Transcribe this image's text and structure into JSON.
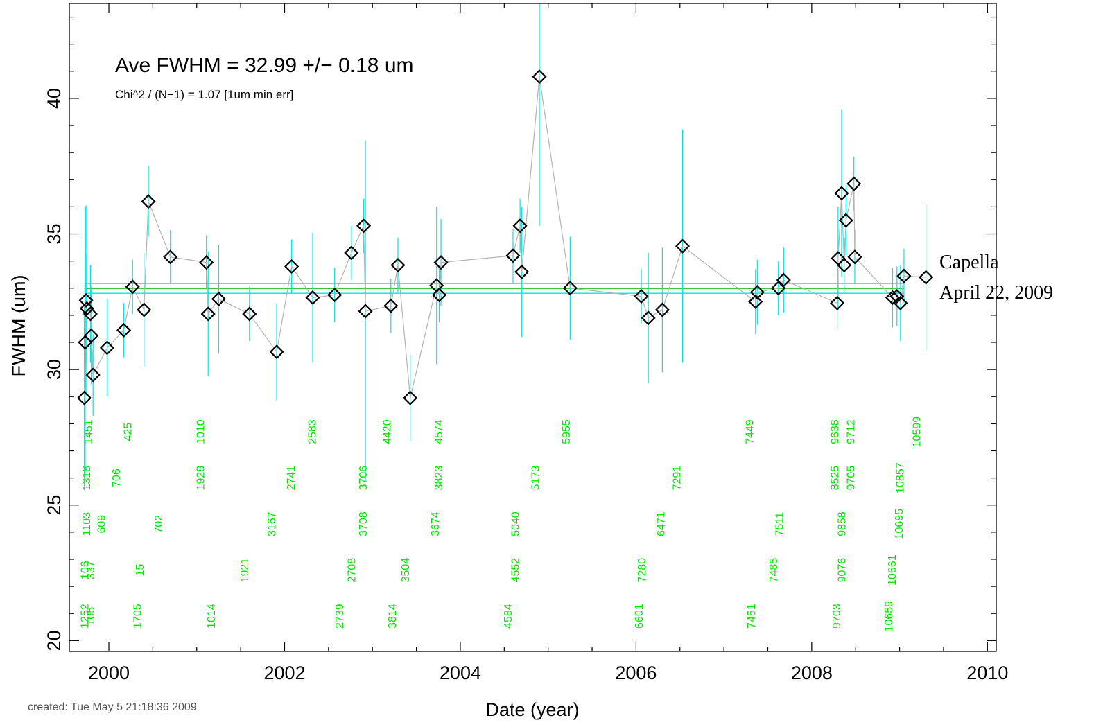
{
  "chart_data": {
    "type": "scatter",
    "title": "",
    "xlabel": "Date (year)",
    "ylabel": "FWHM (um)",
    "xlim": [
      1999.55,
      2010.1
    ],
    "ylim": [
      19.6,
      43.5
    ],
    "x_ticks": [
      2000,
      2002,
      2004,
      2006,
      2008,
      2010
    ],
    "y_ticks": [
      20,
      25,
      30,
      35,
      40
    ],
    "grid": false,
    "annotations": {
      "avg_text": "Ave FWHM = 32.99 +/− 0.18 um",
      "chi_text": "Chi^2 / (N−1) = 1.07  [1um min err]",
      "target_name": "Capella",
      "target_date": "April 22, 2009",
      "created": "created: Tue May  5 21:18:36 2009"
    },
    "mean_line": {
      "value": 32.99,
      "color": "#22bb22"
    },
    "error_band": {
      "low": 32.81,
      "high": 33.17,
      "color": "#00e5e5"
    },
    "colors": {
      "errorbar": "#00e5e5",
      "connector": "#b3b3b3",
      "marker": "#000000",
      "obsid": "#00e600"
    },
    "points": [
      {
        "x": 1999.72,
        "y": 28.95,
        "err": 3.4
      },
      {
        "x": 1999.73,
        "y": 31.0,
        "err": 5.0
      },
      {
        "x": 1999.74,
        "y": 32.55,
        "err": 3.5
      },
      {
        "x": 1999.75,
        "y": 32.25,
        "err": 2.0
      },
      {
        "x": 1999.79,
        "y": 32.05,
        "err": 1.8
      },
      {
        "x": 1999.8,
        "y": 31.25,
        "err": 1.8
      },
      {
        "x": 1999.82,
        "y": 29.8,
        "err": 1.5
      },
      {
        "x": 1999.98,
        "y": 30.8,
        "err": 1.8
      },
      {
        "x": 2000.17,
        "y": 31.45,
        "err": 1.0
      },
      {
        "x": 2000.27,
        "y": 33.05,
        "err": 1.0
      },
      {
        "x": 2000.4,
        "y": 32.2,
        "err": 2.1
      },
      {
        "x": 2000.45,
        "y": 36.2,
        "err": 1.3
      },
      {
        "x": 2000.7,
        "y": 34.15,
        "err": 1.0
      },
      {
        "x": 2001.11,
        "y": 33.95,
        "err": 1.0
      },
      {
        "x": 2001.13,
        "y": 32.05,
        "err": 2.3
      },
      {
        "x": 2001.25,
        "y": 32.6,
        "err": 2.0
      },
      {
        "x": 2001.6,
        "y": 32.05,
        "err": 1.0
      },
      {
        "x": 2001.91,
        "y": 30.65,
        "err": 1.8
      },
      {
        "x": 2002.08,
        "y": 33.8,
        "err": 1.0
      },
      {
        "x": 2002.32,
        "y": 32.65,
        "err": 2.4
      },
      {
        "x": 2002.57,
        "y": 32.75,
        "err": 1.0
      },
      {
        "x": 2002.76,
        "y": 34.3,
        "err": 1.0
      },
      {
        "x": 2002.9,
        "y": 35.3,
        "err": 1.0
      },
      {
        "x": 2002.92,
        "y": 32.15,
        "err": 6.3
      },
      {
        "x": 2003.21,
        "y": 32.35,
        "err": 1.0
      },
      {
        "x": 2003.29,
        "y": 33.85,
        "err": 1.0
      },
      {
        "x": 2003.43,
        "y": 28.95,
        "err": 1.6
      },
      {
        "x": 2003.73,
        "y": 33.1,
        "err": 2.9
      },
      {
        "x": 2003.76,
        "y": 32.75,
        "err": 1.0
      },
      {
        "x": 2003.78,
        "y": 33.95,
        "err": 1.6
      },
      {
        "x": 2004.6,
        "y": 34.2,
        "err": 1.0
      },
      {
        "x": 2004.68,
        "y": 35.3,
        "err": 1.0
      },
      {
        "x": 2004.7,
        "y": 33.6,
        "err": 2.4
      },
      {
        "x": 2004.9,
        "y": 40.8,
        "err": 5.5
      },
      {
        "x": 2005.25,
        "y": 33.0,
        "err": 1.9
      },
      {
        "x": 2006.06,
        "y": 32.7,
        "err": 1.0
      },
      {
        "x": 2006.14,
        "y": 31.9,
        "err": 2.4
      },
      {
        "x": 2006.3,
        "y": 32.2,
        "err": 2.3
      },
      {
        "x": 2006.53,
        "y": 34.55,
        "err": 4.3
      },
      {
        "x": 2007.36,
        "y": 32.5,
        "err": 1.2
      },
      {
        "x": 2007.38,
        "y": 32.85,
        "err": 1.2
      },
      {
        "x": 2007.62,
        "y": 33.0,
        "err": 1.0
      },
      {
        "x": 2007.68,
        "y": 33.3,
        "err": 1.2
      },
      {
        "x": 2008.29,
        "y": 32.45,
        "err": 1.0
      },
      {
        "x": 2008.3,
        "y": 34.1,
        "err": 1.9
      },
      {
        "x": 2008.34,
        "y": 36.5,
        "err": 3.1
      },
      {
        "x": 2008.37,
        "y": 33.85,
        "err": 1.0
      },
      {
        "x": 2008.39,
        "y": 35.5,
        "err": 1.3
      },
      {
        "x": 2008.48,
        "y": 36.85,
        "err": 1.0
      },
      {
        "x": 2008.49,
        "y": 34.15,
        "err": 1.0
      },
      {
        "x": 2008.92,
        "y": 32.65,
        "err": 1.1
      },
      {
        "x": 2008.97,
        "y": 32.7,
        "err": 1.1
      },
      {
        "x": 2009.01,
        "y": 32.45,
        "err": 1.4
      },
      {
        "x": 2009.05,
        "y": 33.45,
        "err": 1.0
      },
      {
        "x": 2009.3,
        "y": 33.4,
        "err": 2.7
      }
    ],
    "obsids": [
      {
        "label": "1451",
        "x": 1999.77,
        "y": 27.7
      },
      {
        "label": "425",
        "x": 2000.22,
        "y": 27.7
      },
      {
        "label": "1010",
        "x": 2001.05,
        "y": 27.7
      },
      {
        "label": "2583",
        "x": 2002.32,
        "y": 27.7
      },
      {
        "label": "4420",
        "x": 2003.17,
        "y": 27.7
      },
      {
        "label": "4574",
        "x": 2003.76,
        "y": 27.7
      },
      {
        "label": "5955",
        "x": 2005.21,
        "y": 27.7
      },
      {
        "label": "7449",
        "x": 2007.3,
        "y": 27.7
      },
      {
        "label": "9638",
        "x": 2008.27,
        "y": 27.7
      },
      {
        "label": "9712",
        "x": 2008.45,
        "y": 27.7
      },
      {
        "label": "10599",
        "x": 2009.2,
        "y": 27.7
      },
      {
        "label": "1318",
        "x": 1999.75,
        "y": 26.0
      },
      {
        "label": "706",
        "x": 2000.09,
        "y": 26.0
      },
      {
        "label": "1928",
        "x": 2001.05,
        "y": 26.0
      },
      {
        "label": "2741",
        "x": 2002.08,
        "y": 26.0
      },
      {
        "label": "3706",
        "x": 2002.9,
        "y": 26.0
      },
      {
        "label": "3823",
        "x": 2003.76,
        "y": 26.0
      },
      {
        "label": "5173",
        "x": 2004.86,
        "y": 26.0
      },
      {
        "label": "7291",
        "x": 2006.47,
        "y": 26.0
      },
      {
        "label": "8525",
        "x": 2008.27,
        "y": 26.0
      },
      {
        "label": "9705",
        "x": 2008.45,
        "y": 26.0
      },
      {
        "label": "10857",
        "x": 2009.01,
        "y": 26.0
      },
      {
        "label": "1103",
        "x": 1999.75,
        "y": 24.3
      },
      {
        "label": "609",
        "x": 1999.92,
        "y": 24.3
      },
      {
        "label": "702",
        "x": 2000.57,
        "y": 24.3
      },
      {
        "label": "3167",
        "x": 2001.86,
        "y": 24.3
      },
      {
        "label": "3708",
        "x": 2002.9,
        "y": 24.3
      },
      {
        "label": "3674",
        "x": 2003.72,
        "y": 24.3
      },
      {
        "label": "5040",
        "x": 2004.63,
        "y": 24.3
      },
      {
        "label": "6471",
        "x": 2006.29,
        "y": 24.3
      },
      {
        "label": "7511",
        "x": 2007.64,
        "y": 24.3
      },
      {
        "label": "9858",
        "x": 2008.35,
        "y": 24.3
      },
      {
        "label": "10695",
        "x": 2009.0,
        "y": 24.3
      },
      {
        "label": "106",
        "x": 1999.73,
        "y": 22.6
      },
      {
        "label": "337",
        "x": 1999.8,
        "y": 22.6
      },
      {
        "label": "15",
        "x": 2000.36,
        "y": 22.6
      },
      {
        "label": "1921",
        "x": 2001.55,
        "y": 22.6
      },
      {
        "label": "2708",
        "x": 2002.77,
        "y": 22.6
      },
      {
        "label": "3504",
        "x": 2003.38,
        "y": 22.6
      },
      {
        "label": "4552",
        "x": 2004.63,
        "y": 22.6
      },
      {
        "label": "7280",
        "x": 2006.07,
        "y": 22.6
      },
      {
        "label": "7485",
        "x": 2007.57,
        "y": 22.6
      },
      {
        "label": "9076",
        "x": 2008.35,
        "y": 22.6
      },
      {
        "label": "10661",
        "x": 2008.92,
        "y": 22.6
      },
      {
        "label": "1252",
        "x": 1999.73,
        "y": 20.9
      },
      {
        "label": "105",
        "x": 1999.8,
        "y": 20.9
      },
      {
        "label": "1705",
        "x": 2000.33,
        "y": 20.9
      },
      {
        "label": "1014",
        "x": 2001.17,
        "y": 20.9
      },
      {
        "label": "2739",
        "x": 2002.63,
        "y": 20.9
      },
      {
        "label": "3814",
        "x": 2003.23,
        "y": 20.9
      },
      {
        "label": "4584",
        "x": 2004.55,
        "y": 20.9
      },
      {
        "label": "6601",
        "x": 2006.04,
        "y": 20.9
      },
      {
        "label": "7451",
        "x": 2007.32,
        "y": 20.9
      },
      {
        "label": "9703",
        "x": 2008.29,
        "y": 20.9
      },
      {
        "label": "10659",
        "x": 2008.88,
        "y": 20.9
      }
    ]
  }
}
